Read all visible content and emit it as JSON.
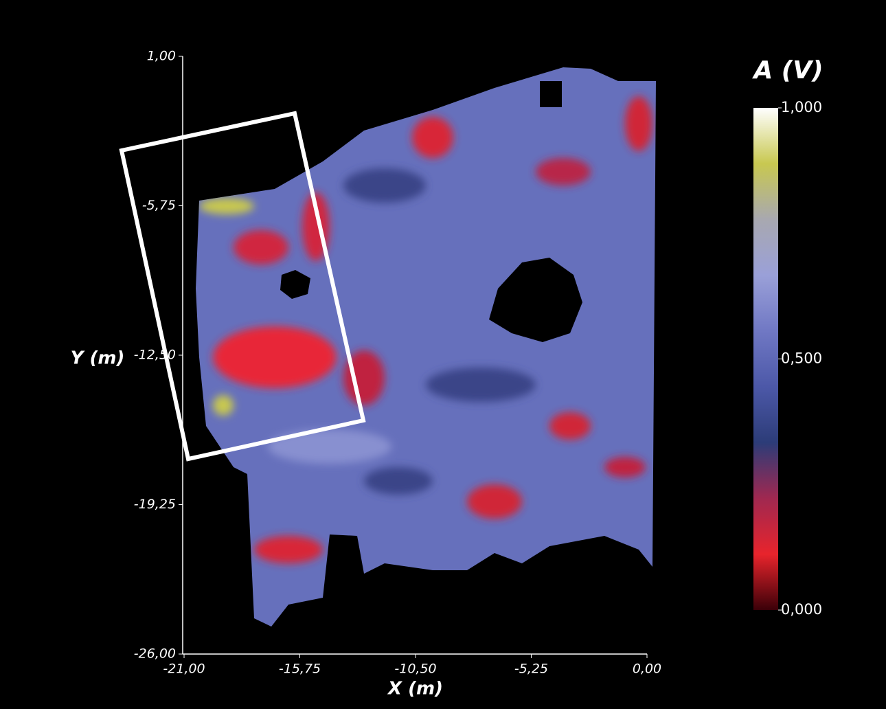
{
  "chart_data": {
    "type": "heatmap",
    "x_label": "X (m)",
    "y_label": "Y (m)",
    "xlim": [
      -21,
      0
    ],
    "xticks": [
      {
        "value": -21,
        "label": "-21,00"
      },
      {
        "value": -15.75,
        "label": "-15,75"
      },
      {
        "value": -10.5,
        "label": "-10,50"
      },
      {
        "value": -5.25,
        "label": "-5,25"
      },
      {
        "value": 0,
        "label": "0,00"
      }
    ],
    "ylim": [
      -26,
      1
    ],
    "yticks": [
      {
        "value": 1,
        "label": "1,00"
      },
      {
        "value": -5.75,
        "label": "-5,75"
      },
      {
        "value": -12.5,
        "label": "-12,50"
      },
      {
        "value": -19.25,
        "label": "-19,25"
      },
      {
        "value": -26,
        "label": "-26,00"
      }
    ],
    "colorbar": {
      "title": "A (V)",
      "lim": [
        0,
        1
      ],
      "ticks": [
        {
          "value": 0,
          "label": "0,000"
        },
        {
          "value": 0.5,
          "label": "0,500"
        },
        {
          "value": 1,
          "label": "1,000"
        }
      ],
      "colors": [
        "#3a0008",
        "#e8242c",
        "#a02850",
        "#2c3c78",
        "#4c58a8",
        "#7078c4",
        "#9aa0d8",
        "#a8a8b0",
        "#c8c850",
        "#ffffff"
      ]
    }
  }
}
